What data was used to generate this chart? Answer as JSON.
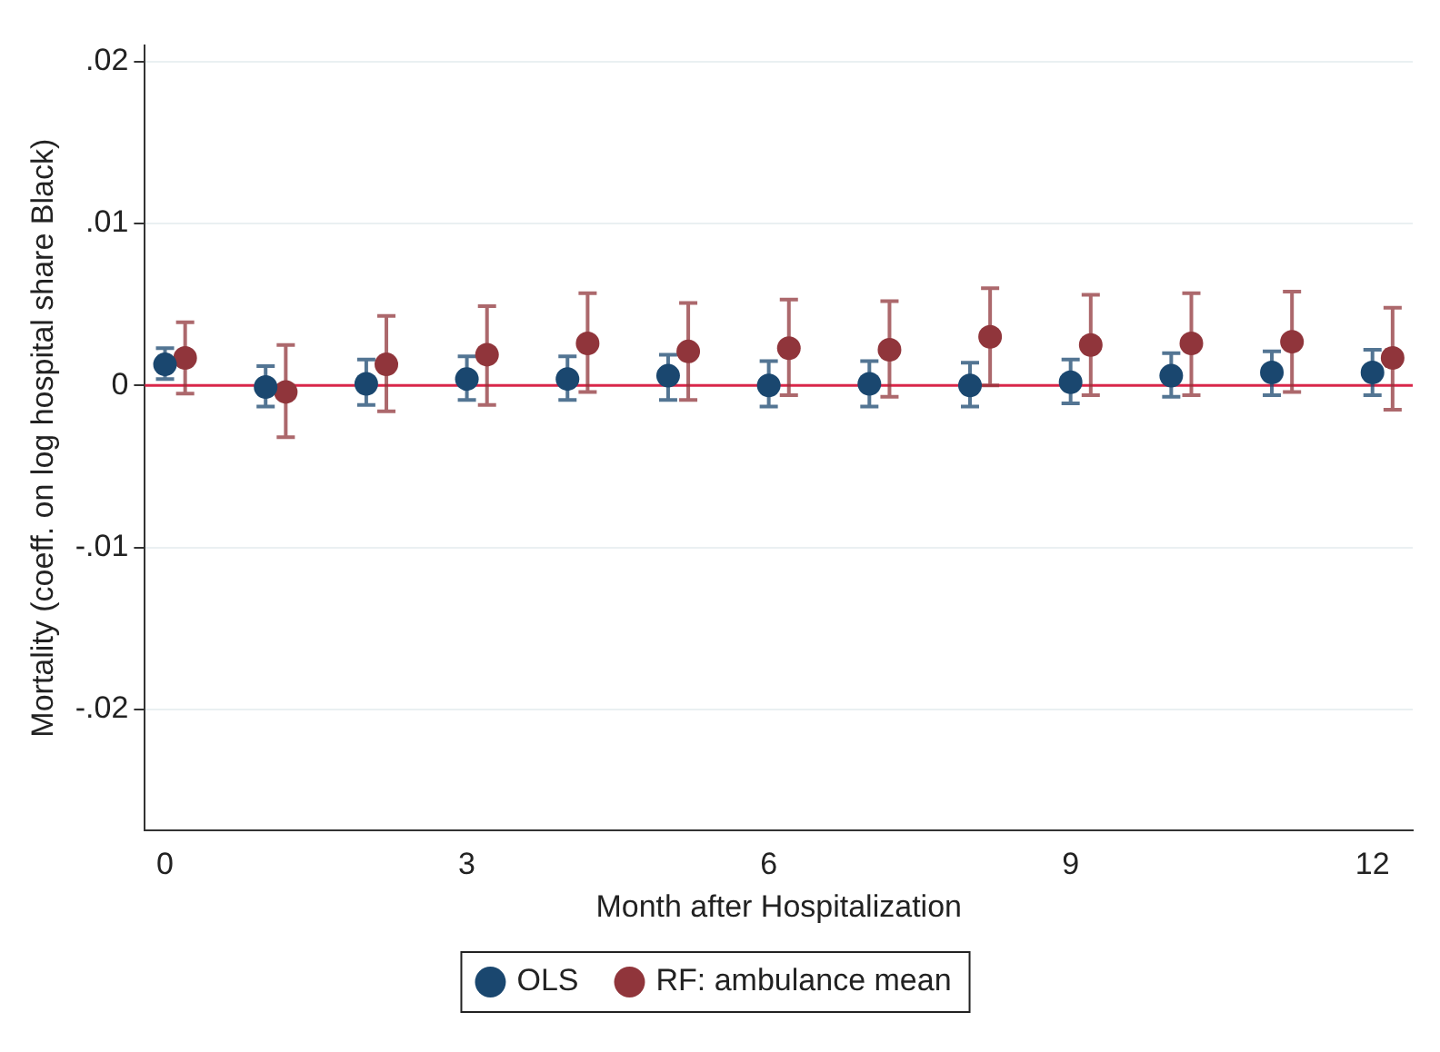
{
  "chart_data": {
    "type": "scatter",
    "xlabel": "Month after Hospitalization",
    "ylabel": "Mortality (coeff. on log hospital share Black)",
    "xlim": [
      -0.2,
      12.4
    ],
    "xticks": [
      0,
      3,
      6,
      9,
      12
    ],
    "ylim": [
      -0.0275,
      0.021
    ],
    "yticks": [
      {
        "value": -0.02,
        "label": "-.02"
      },
      {
        "value": -0.01,
        "label": "-.01"
      },
      0,
      {
        "value": 0.01,
        "label": ".01"
      },
      {
        "value": 0.02,
        "label": ".02"
      }
    ],
    "grid": "y",
    "legend": "bottom",
    "marker": "circle",
    "ref_lines": [
      {
        "axis": "y",
        "value": 0,
        "color": "#d9274a"
      }
    ],
    "series": [
      {
        "name": "OLS",
        "color": "#1a476f",
        "x": [
          0,
          1,
          2,
          3,
          4,
          5,
          6,
          7,
          8,
          9,
          10,
          11,
          12
        ],
        "values": [
          0.0013,
          -0.0001,
          0.0001,
          0.0004,
          0.0004,
          0.0006,
          0.0,
          0.0001,
          0.0,
          0.0002,
          0.0006,
          0.0008,
          0.0008
        ],
        "errors": [
          [
            0.0004,
            0.0023
          ],
          [
            -0.0013,
            0.0012
          ],
          [
            -0.0012,
            0.0016
          ],
          [
            -0.0009,
            0.0018
          ],
          [
            -0.0009,
            0.0018
          ],
          [
            -0.0009,
            0.0019
          ],
          [
            -0.0013,
            0.0015
          ],
          [
            -0.0013,
            0.0015
          ],
          [
            -0.0013,
            0.0014
          ],
          [
            -0.0011,
            0.0016
          ],
          [
            -0.0007,
            0.002
          ],
          [
            -0.0006,
            0.0021
          ],
          [
            -0.0006,
            0.0022
          ]
        ]
      },
      {
        "name": "RF: ambulance mean",
        "color": "#90353b",
        "x": [
          0.2,
          1.2,
          2.2,
          3.2,
          4.2,
          5.2,
          6.2,
          7.2,
          8.2,
          9.2,
          10.2,
          11.2,
          12.2
        ],
        "values": [
          0.0017,
          -0.0004,
          0.0013,
          0.0019,
          0.0026,
          0.0021,
          0.0023,
          0.0022,
          0.003,
          0.0025,
          0.0026,
          0.0027,
          0.0017
        ],
        "errors": [
          [
            -0.0005,
            0.0039
          ],
          [
            -0.0032,
            0.0025
          ],
          [
            -0.0016,
            0.0043
          ],
          [
            -0.0012,
            0.0049
          ],
          [
            -0.0004,
            0.0057
          ],
          [
            -0.0009,
            0.0051
          ],
          [
            -0.0006,
            0.0053
          ],
          [
            -0.0007,
            0.0052
          ],
          [
            0.0,
            0.006
          ],
          [
            -0.0006,
            0.0056
          ],
          [
            -0.0006,
            0.0057
          ],
          [
            -0.0004,
            0.0058
          ],
          [
            -0.0015,
            0.0048
          ]
        ]
      }
    ]
  }
}
